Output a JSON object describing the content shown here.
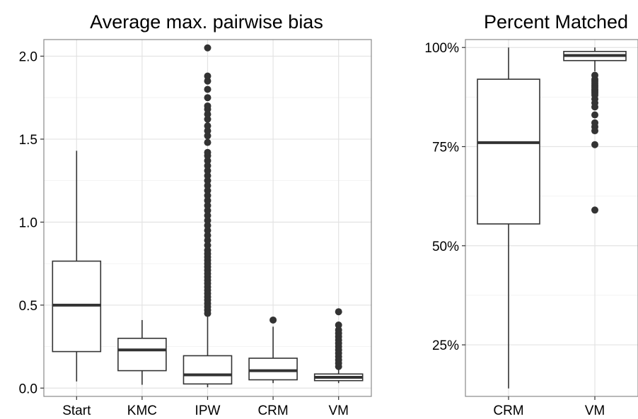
{
  "chart_data": [
    {
      "type": "box",
      "title": "Average max. pairwise bias",
      "ylim": [
        -0.05,
        2.1
      ],
      "yticks": [
        0.0,
        0.5,
        1.0,
        1.5,
        2.0
      ],
      "ytick_labels": [
        "0.0",
        "0.5",
        "1.0",
        "1.5",
        "2.0"
      ],
      "categories": [
        "Start",
        "KMC",
        "IPW",
        "CRM",
        "VM"
      ],
      "boxes": [
        {
          "name": "Start",
          "whisker_low": 0.04,
          "q1": 0.22,
          "median": 0.5,
          "q3": 0.765,
          "whisker_high": 1.43,
          "outliers": []
        },
        {
          "name": "KMC",
          "whisker_low": 0.02,
          "q1": 0.105,
          "median": 0.23,
          "q3": 0.3,
          "whisker_high": 0.41,
          "outliers": []
        },
        {
          "name": "IPW",
          "whisker_low": 0.005,
          "q1": 0.025,
          "median": 0.08,
          "q3": 0.195,
          "whisker_high": 0.44,
          "outliers": [
            0.45,
            0.47,
            0.49,
            0.51,
            0.53,
            0.55,
            0.57,
            0.59,
            0.61,
            0.63,
            0.65,
            0.67,
            0.69,
            0.71,
            0.73,
            0.75,
            0.77,
            0.79,
            0.81,
            0.83,
            0.86,
            0.89,
            0.92,
            0.95,
            0.98,
            1.01,
            1.04,
            1.07,
            1.1,
            1.13,
            1.16,
            1.19,
            1.22,
            1.25,
            1.28,
            1.31,
            1.34,
            1.37,
            1.4,
            1.42,
            1.48,
            1.52,
            1.55,
            1.58,
            1.62,
            1.65,
            1.68,
            1.7,
            1.75,
            1.8,
            1.85,
            1.88,
            2.05
          ]
        },
        {
          "name": "CRM",
          "whisker_low": 0.03,
          "q1": 0.05,
          "median": 0.105,
          "q3": 0.18,
          "whisker_high": 0.37,
          "outliers": [
            0.41
          ]
        },
        {
          "name": "VM",
          "whisker_low": 0.03,
          "q1": 0.045,
          "median": 0.065,
          "q3": 0.085,
          "whisker_high": 0.12,
          "outliers": [
            0.13,
            0.15,
            0.17,
            0.19,
            0.21,
            0.23,
            0.25,
            0.27,
            0.29,
            0.31,
            0.33,
            0.35,
            0.38,
            0.46
          ]
        }
      ]
    },
    {
      "type": "box",
      "title": "Percent Matched",
      "ylim": [
        0.12,
        1.02
      ],
      "yticks": [
        0.25,
        0.5,
        0.75,
        1.0
      ],
      "ytick_labels": [
        "25%",
        "50%",
        "75%",
        "100%"
      ],
      "categories": [
        "CRM",
        "VM"
      ],
      "boxes": [
        {
          "name": "CRM",
          "whisker_low": 0.14,
          "q1": 0.555,
          "median": 0.76,
          "q3": 0.92,
          "whisker_high": 1.0,
          "outliers": []
        },
        {
          "name": "VM",
          "whisker_low": 0.94,
          "q1": 0.967,
          "median": 0.98,
          "q3": 0.99,
          "whisker_high": 1.0,
          "outliers": [
            0.93,
            0.92,
            0.915,
            0.91,
            0.905,
            0.9,
            0.895,
            0.89,
            0.885,
            0.88,
            0.87,
            0.86,
            0.85,
            0.83,
            0.81,
            0.8,
            0.79,
            0.755,
            0.59
          ]
        }
      ]
    }
  ]
}
